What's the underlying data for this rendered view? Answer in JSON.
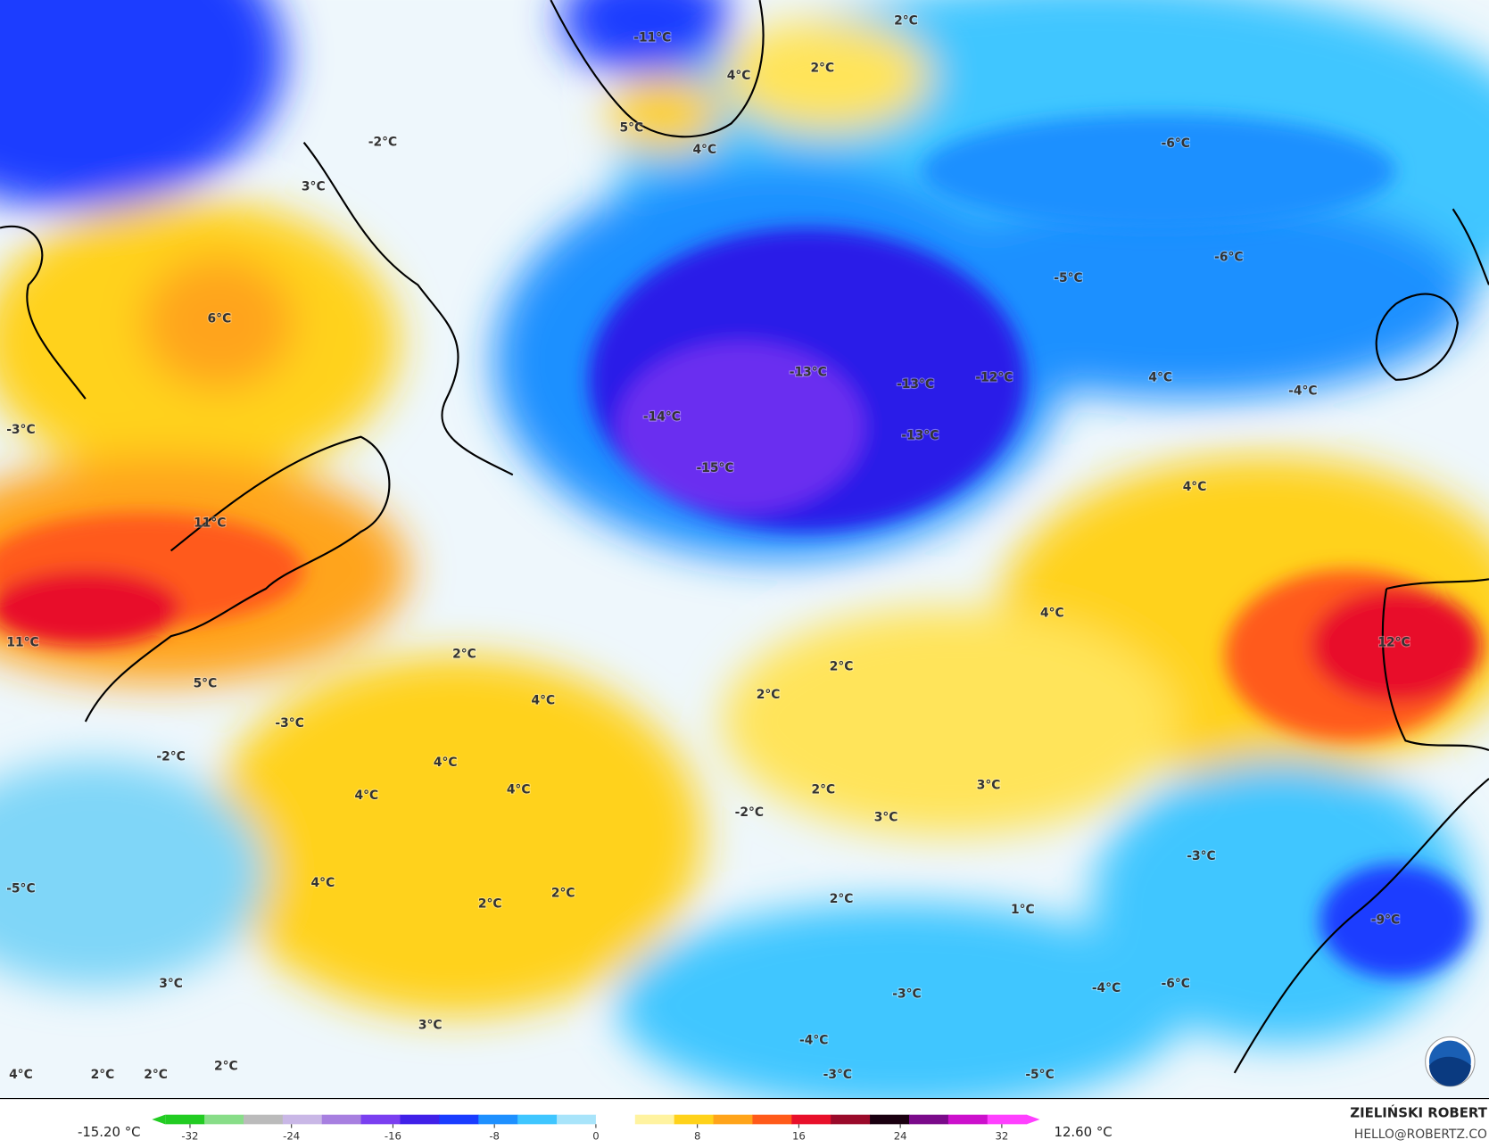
{
  "map": {
    "labels": [
      "-11°C",
      "4°C",
      "2°C",
      "2°C",
      "5°C",
      "4°C",
      "-2°C",
      "3°C",
      "-6°C",
      "-6°C",
      "-5°C",
      "6°C",
      "-13°C",
      "-13°C",
      "-12°C",
      "4°C",
      "-4°C",
      "-3°C",
      "-14°C",
      "-13°C",
      "-15°C",
      "4°C",
      "11°C",
      "4°C",
      "11°C",
      "2°C",
      "2°C",
      "12°C",
      "5°C",
      "2°C",
      "4°C",
      "-3°C",
      "-2°C",
      "4°C",
      "4°C",
      "4°C",
      "2°C",
      "-2°C",
      "3°C",
      "3°C",
      "-3°C",
      "-5°C",
      "4°C",
      "2°C",
      "2°C",
      "2°C",
      "1°C",
      "-9°C",
      "3°C",
      "-6°C",
      "-4°C",
      "-3°C",
      "3°C",
      "-4°C",
      "2°C",
      "-3°C",
      "-5°C",
      "4°C",
      "2°C",
      "2°C"
    ]
  },
  "colorbar": {
    "min_label": "-15.20 °C",
    "max_label": "12.60 °C",
    "lim": [
      -35,
      35
    ],
    "ticks": [
      -32,
      -24,
      -16,
      -8,
      0,
      8,
      16,
      24,
      32
    ],
    "colors": [
      "#22cc22",
      "#88dd88",
      "#bbbbbb",
      "#c9b7e6",
      "#a77fe0",
      "#7a3ff0",
      "#4020e8",
      "#1a3cff",
      "#1e90ff",
      "#3fc6ff",
      "#a8e4fa",
      "#ffffff",
      "#fff3a0",
      "#ffd21a",
      "#ffa41a",
      "#ff5a1a",
      "#e8102a",
      "#9a0a2a",
      "#1a0010",
      "#7a0a8a",
      "#cc10cc",
      "#ff40ff"
    ]
  },
  "credit": {
    "author": "ZIELIŃSKI ROBERT",
    "email": "HELLO@ROBERTZ.CO"
  }
}
